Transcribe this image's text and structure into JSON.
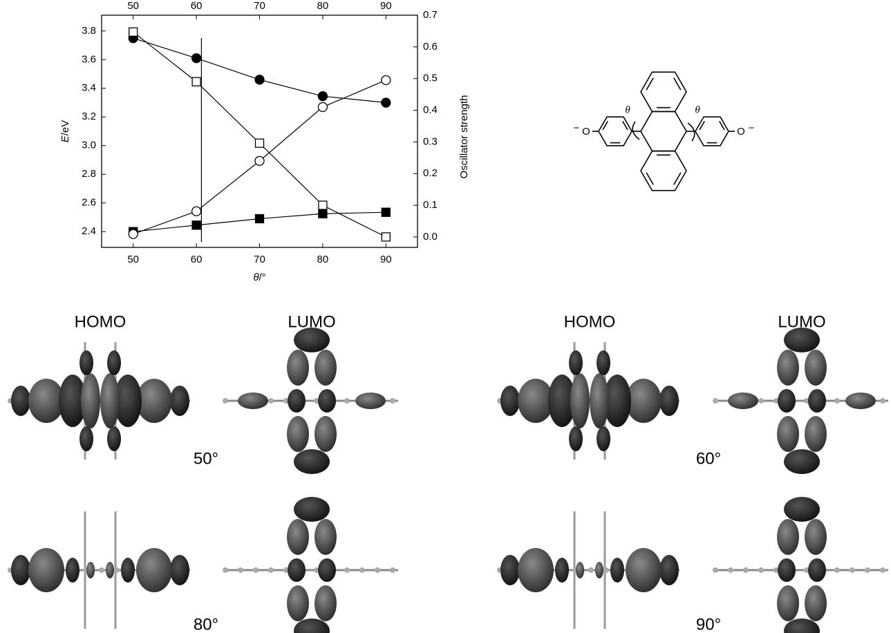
{
  "chart_data": {
    "type": "line",
    "xlabel": {
      "italic": "θ",
      "rest": "/°"
    },
    "ylabel": {
      "italic": "E",
      "rest": "/eV"
    },
    "y2label": "Oscillator strength",
    "x": [
      50,
      60,
      70,
      80,
      90
    ],
    "xlim": [
      45,
      95
    ],
    "xticks": [
      50,
      60,
      70,
      80,
      90
    ],
    "ylim": [
      2.29,
      3.91
    ],
    "yticks": [
      2.4,
      2.6,
      2.8,
      {
        "value": 3,
        "label": "3.0"
      },
      3.2,
      3.4,
      3.6,
      3.8
    ],
    "y2lim": [
      -0.033,
      0.7
    ],
    "y2ticks": [
      {
        "value": 0,
        "label": "0.0"
      },
      0.1,
      0.2,
      0.3,
      0.4,
      0.5,
      0.6,
      0.7
    ],
    "vline_x": 60.8,
    "series": [
      {
        "marker": "circle",
        "filled": true,
        "color": "#000000",
        "values": [
          3.75,
          3.61,
          3.46,
          3.345,
          3.3
        ]
      },
      {
        "marker": "square",
        "filled": true,
        "color": "#000000",
        "values": [
          2.4,
          2.445,
          2.49,
          2.525,
          2.535
        ]
      },
      {
        "marker": "square",
        "filled": false,
        "color": "#000000",
        "axis": "y2",
        "values": [
          0.647,
          0.49,
          0.296,
          0.1,
          0.0
        ]
      },
      {
        "marker": "circle",
        "filled": false,
        "color": "#000000",
        "axis": "y2",
        "values": [
          0.009,
          0.081,
          0.24,
          0.41,
          0.495
        ]
      }
    ]
  },
  "structure": {
    "angle_labels": [
      "θ",
      "θ"
    ],
    "atoms": [
      "O",
      "O"
    ],
    "charges": [
      "−",
      "−"
    ]
  },
  "orbitals": {
    "homo": "HOMO",
    "lumo": "LUMO",
    "angles": [
      "50°",
      "60°",
      "80°",
      "90°"
    ]
  }
}
